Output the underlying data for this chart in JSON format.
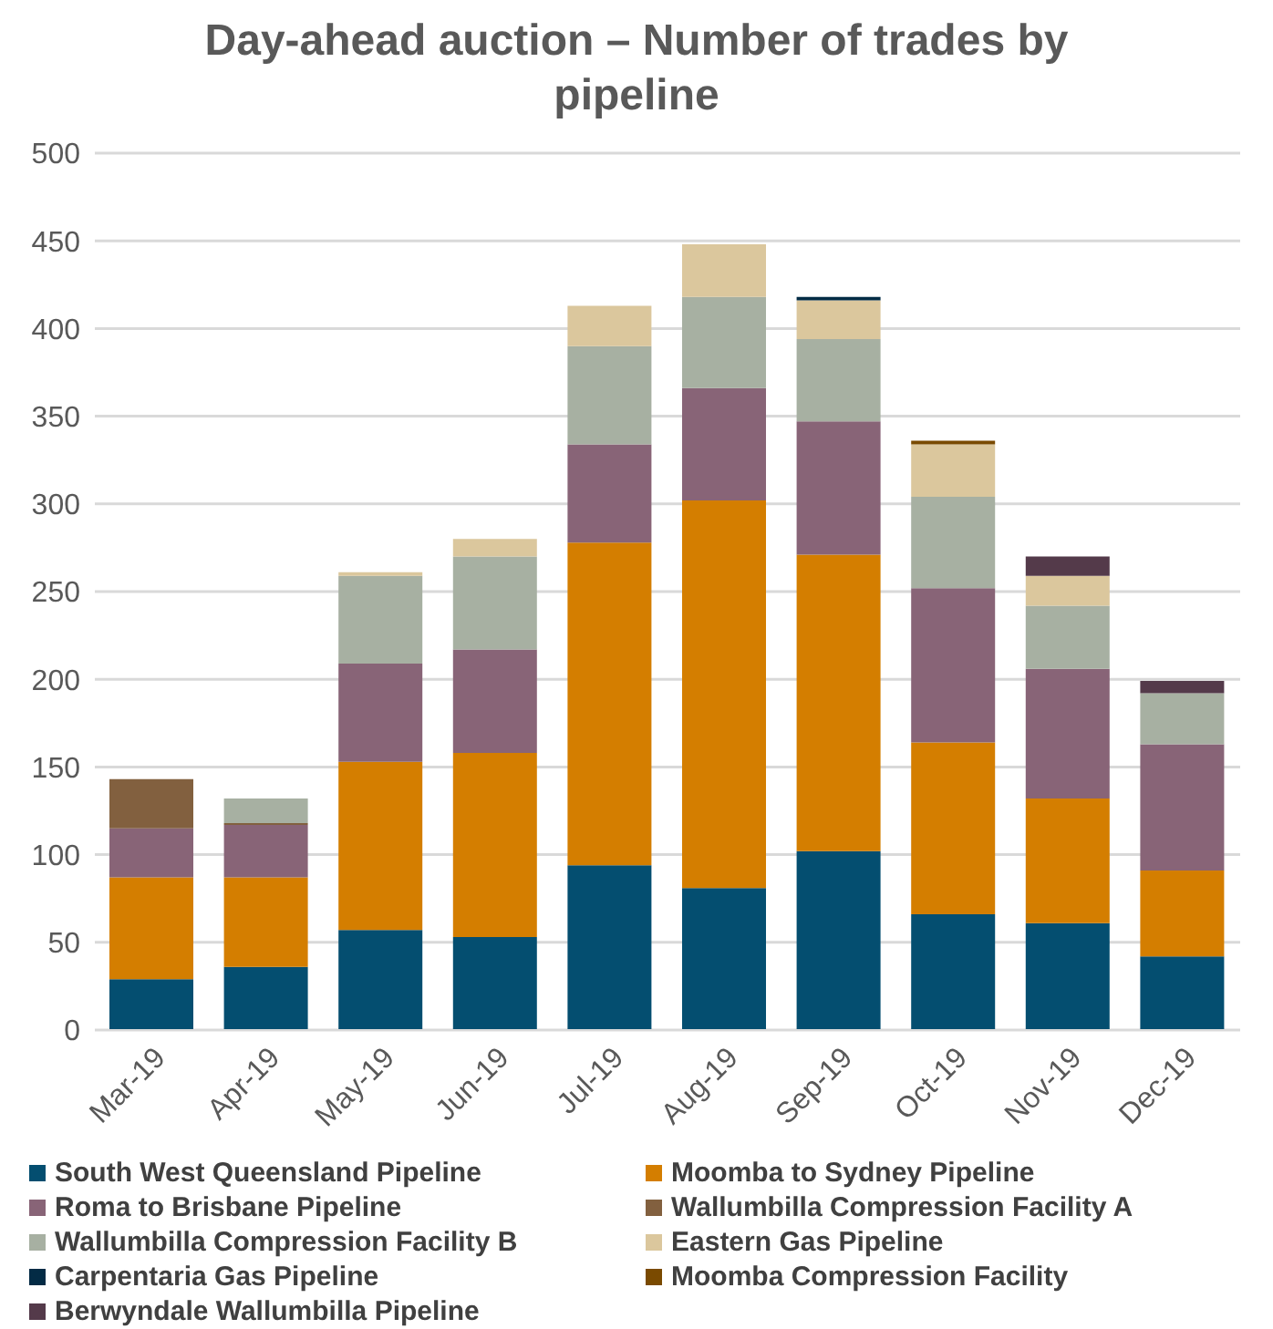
{
  "chart_data": {
    "type": "bar",
    "stacked": true,
    "title": "Day-ahead auction – Number of trades by pipeline",
    "categories": [
      "Mar-19",
      "Apr-19",
      "May-19",
      "Jun-19",
      "Jul-19",
      "Aug-19",
      "Sep-19",
      "Oct-19",
      "Nov-19",
      "Dec-19"
    ],
    "series": [
      {
        "name": "South West Queensland Pipeline",
        "color": "#044e70",
        "values": [
          29,
          36,
          57,
          53,
          94,
          81,
          102,
          66,
          61,
          42
        ]
      },
      {
        "name": "Moomba to Sydney Pipeline",
        "color": "#d47e00",
        "values": [
          58,
          51,
          96,
          105,
          184,
          221,
          169,
          98,
          71,
          49
        ]
      },
      {
        "name": "Roma to Brisbane Pipeline",
        "color": "#886477",
        "values": [
          28,
          30,
          56,
          59,
          56,
          64,
          76,
          88,
          74,
          72
        ]
      },
      {
        "name": "Wallumbilla Compression Facility A",
        "color": "#82603f",
        "values": [
          28,
          1,
          null,
          null,
          null,
          null,
          null,
          null,
          null,
          null
        ]
      },
      {
        "name": "Wallumbilla Compression Facility B",
        "color": "#a7b0a2",
        "values": [
          null,
          14,
          50,
          53,
          56,
          52,
          47,
          52,
          36,
          29
        ]
      },
      {
        "name": "Eastern Gas Pipeline",
        "color": "#dbc79d",
        "values": [
          null,
          null,
          2,
          10,
          23,
          30,
          22,
          30,
          17,
          null
        ]
      },
      {
        "name": "Carpentaria Gas Pipeline",
        "color": "#032b45",
        "values": [
          null,
          null,
          null,
          null,
          null,
          null,
          2,
          null,
          null,
          null
        ]
      },
      {
        "name": "Moomba Compression Facility",
        "color": "#7a4a00",
        "values": [
          null,
          null,
          null,
          null,
          null,
          null,
          null,
          2,
          null,
          null
        ]
      },
      {
        "name": "Berwyndale Wallumbilla Pipeline",
        "color": "#543a4a",
        "values": [
          null,
          null,
          null,
          null,
          null,
          null,
          null,
          null,
          11,
          7
        ]
      }
    ],
    "ylim": [
      0,
      500
    ],
    "yticks": [
      0,
      50,
      100,
      150,
      200,
      250,
      300,
      350,
      400,
      450,
      500
    ],
    "grid": "y",
    "legend": "bottom"
  }
}
